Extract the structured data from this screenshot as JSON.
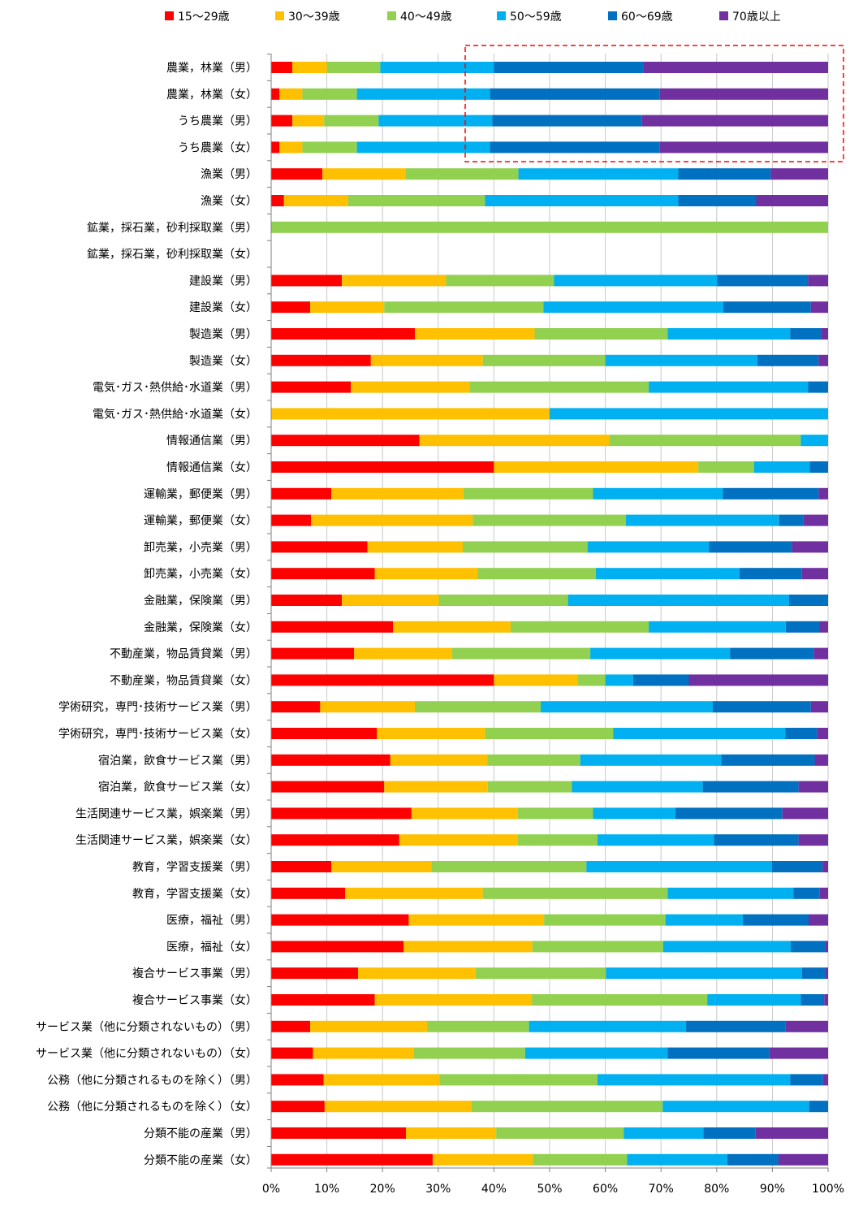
{
  "chart_data": {
    "type": "bar",
    "orientation": "horizontal",
    "stacked": "percent",
    "legend_position": "top",
    "grid": "vertical",
    "xlim": [
      0,
      100
    ],
    "ticks": [
      "0%",
      "10%",
      "20%",
      "30%",
      "40%",
      "50%",
      "60%",
      "70%",
      "80%",
      "90%",
      "100%"
    ],
    "series": [
      {
        "name": "15〜29歳",
        "color": "#ff0000"
      },
      {
        "name": "30〜39歳",
        "color": "#ffc000"
      },
      {
        "name": "40〜49歳",
        "color": "#92d050"
      },
      {
        "name": "50〜59歳",
        "color": "#00b0f0"
      },
      {
        "name": "60〜69歳",
        "color": "#0070c0"
      },
      {
        "name": "70歳以上",
        "color": "#7030a0"
      }
    ],
    "categories": [
      "農業，林業（男）",
      "農業，林業（女）",
      "うち農業（男）",
      "うち農業（女）",
      "漁業（男）",
      "漁業（女）",
      "鉱業，採石業，砂利採取業（男）",
      "鉱業，採石業，砂利採取業（女）",
      "建設業（男）",
      "建設業（女）",
      "製造業（男）",
      "製造業（女）",
      "電気･ガス･熱供給･水道業（男）",
      "電気･ガス･熱供給･水道業（女）",
      "情報通信業（男）",
      "情報通信業（女）",
      "運輸業，郵便業（男）",
      "運輸業，郵便業（女）",
      "卸売業，小売業（男）",
      "卸売業，小売業（女）",
      "金融業，保険業（男）",
      "金融業，保険業（女）",
      "不動産業，物品賃貸業（男）",
      "不動産業，物品賃貸業（女）",
      "学術研究，専門･技術サービス業（男）",
      "学術研究，専門･技術サービス業（女）",
      "宿泊業，飲食サービス業（男）",
      "宿泊業，飲食サービス業（女）",
      "生活関連サービス業，娯楽業（男）",
      "生活関連サービス業，娯楽業（女）",
      "教育，学習支援業（男）",
      "教育，学習支援業（女）",
      "医療，福祉（男）",
      "医療，福祉（女）",
      "複合サービス事業（男）",
      "複合サービス事業（女）",
      "サービス業（他に分類されないもの）（男）",
      "サービス業（他に分類されないもの）（女）",
      "公務（他に分類されるものを除く）（男）",
      "公務（他に分類されるものを除く）（女）",
      "分類不能の産業（男）",
      "分類不能の産業（女）"
    ],
    "values": [
      [
        3.8,
        6.2,
        9.6,
        20.4,
        26.9,
        33.1
      ],
      [
        1.5,
        4.1,
        9.8,
        23.9,
        30.5,
        30.2
      ],
      [
        3.8,
        5.7,
        9.8,
        20.4,
        26.9,
        33.4
      ],
      [
        1.5,
        4.1,
        9.8,
        23.9,
        30.5,
        30.2
      ],
      [
        9.2,
        14.9,
        20.3,
        28.7,
        16.6,
        10.3
      ],
      [
        2.3,
        11.5,
        24.6,
        34.7,
        14.0,
        12.9
      ],
      [
        0,
        0,
        100,
        0,
        0,
        0
      ],
      [
        0,
        0,
        0,
        0,
        0,
        0
      ],
      [
        12.7,
        18.7,
        19.4,
        29.3,
        16.3,
        3.6
      ],
      [
        7.0,
        13.3,
        28.6,
        32.3,
        15.7,
        3.1
      ],
      [
        25.8,
        21.5,
        23.9,
        22.0,
        5.5,
        1.3
      ],
      [
        17.9,
        20.1,
        22.0,
        27.3,
        11.0,
        1.7
      ],
      [
        14.3,
        21.3,
        32.2,
        28.6,
        3.6,
        0
      ],
      [
        0,
        50.0,
        0,
        50.0,
        0,
        0
      ],
      [
        26.6,
        34.1,
        34.4,
        4.9,
        0,
        0
      ],
      [
        40.0,
        36.7,
        10.0,
        10.0,
        3.3,
        0
      ],
      [
        10.8,
        23.7,
        23.3,
        23.3,
        17.2,
        1.7
      ],
      [
        7.5,
        30.4,
        28.8,
        28.8,
        4.6,
        4.6
      ],
      [
        17.3,
        17.1,
        22.4,
        21.8,
        14.9,
        6.5
      ],
      [
        18.6,
        18.5,
        21.2,
        25.8,
        11.2,
        4.7
      ],
      [
        12.7,
        17.4,
        23.2,
        39.7,
        7.0,
        0
      ],
      [
        21.9,
        21.1,
        24.8,
        24.6,
        6.0,
        1.6
      ],
      [
        14.9,
        17.6,
        24.8,
        25.1,
        15.0,
        2.6
      ],
      [
        40.0,
        15.0,
        5.0,
        5.0,
        10.0,
        25.0
      ],
      [
        8.8,
        17.0,
        22.6,
        30.9,
        17.6,
        3.1
      ],
      [
        19.0,
        19.4,
        23.0,
        30.9,
        5.7,
        2.0
      ],
      [
        21.4,
        17.4,
        16.7,
        25.3,
        16.8,
        2.4
      ],
      [
        20.3,
        18.6,
        15.1,
        23.5,
        17.2,
        5.3
      ],
      [
        25.2,
        19.1,
        13.5,
        14.8,
        19.2,
        8.2
      ],
      [
        23.0,
        21.3,
        14.3,
        20.9,
        15.2,
        5.3
      ],
      [
        10.8,
        18.0,
        27.8,
        33.3,
        9.1,
        1.0
      ],
      [
        13.3,
        24.7,
        33.2,
        22.6,
        4.7,
        1.5
      ],
      [
        24.7,
        24.3,
        21.8,
        13.9,
        11.8,
        3.5
      ],
      [
        23.8,
        23.1,
        23.5,
        22.9,
        6.2,
        0.5
      ],
      [
        15.6,
        21.1,
        23.4,
        35.2,
        4.2,
        0.5
      ],
      [
        18.6,
        28.2,
        31.5,
        16.8,
        4.2,
        0.7
      ],
      [
        7.0,
        21.0,
        18.3,
        28.2,
        17.8,
        7.7
      ],
      [
        7.5,
        18.1,
        20.0,
        25.6,
        18.2,
        10.6
      ],
      [
        9.4,
        20.8,
        28.4,
        34.6,
        5.9,
        0.9
      ],
      [
        9.6,
        26.4,
        34.3,
        26.3,
        3.4,
        0
      ],
      [
        24.2,
        16.2,
        22.9,
        14.3,
        9.4,
        13.0
      ],
      [
        29.0,
        18.0,
        16.9,
        18.0,
        9.2,
        8.9
      ]
    ],
    "annotation": "dashed-red-highlight-box"
  }
}
